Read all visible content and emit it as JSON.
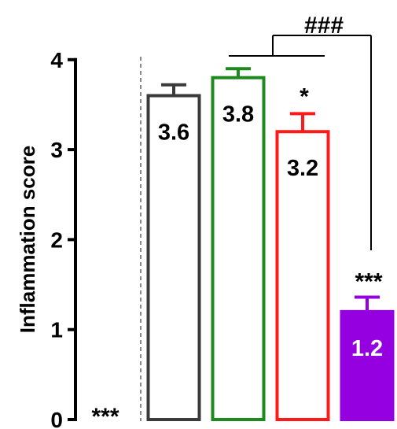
{
  "chart_data": {
    "type": "bar",
    "ylabel": "Inflammation score",
    "ylim": [
      0,
      4
    ],
    "yticks": [
      "0",
      "1",
      "2",
      "3",
      "4"
    ],
    "bars": [
      {
        "value": 0,
        "error": 0,
        "label": "",
        "sig": "***",
        "color": "#000000",
        "fill": "none"
      },
      {
        "value": 3.6,
        "error": 0.12,
        "label": "3.6",
        "sig": "",
        "color": "#3a3a3a",
        "fill": "none"
      },
      {
        "value": 3.8,
        "error": 0.1,
        "label": "3.8",
        "sig": "",
        "color": "#1e8a1e",
        "fill": "none"
      },
      {
        "value": 3.2,
        "error": 0.2,
        "label": "3.2",
        "sig": "*",
        "color": "#ff1a1a",
        "fill": "none"
      },
      {
        "value": 1.2,
        "error": 0.16,
        "label": "1.2",
        "sig": "***",
        "color": "#9400e0",
        "fill": "#9400e0"
      }
    ],
    "comparison": {
      "label": "###",
      "from_bars": [
        1,
        2,
        3
      ],
      "to_bar": 4
    },
    "divider": {
      "style": "dashed",
      "color": "#888888"
    }
  }
}
